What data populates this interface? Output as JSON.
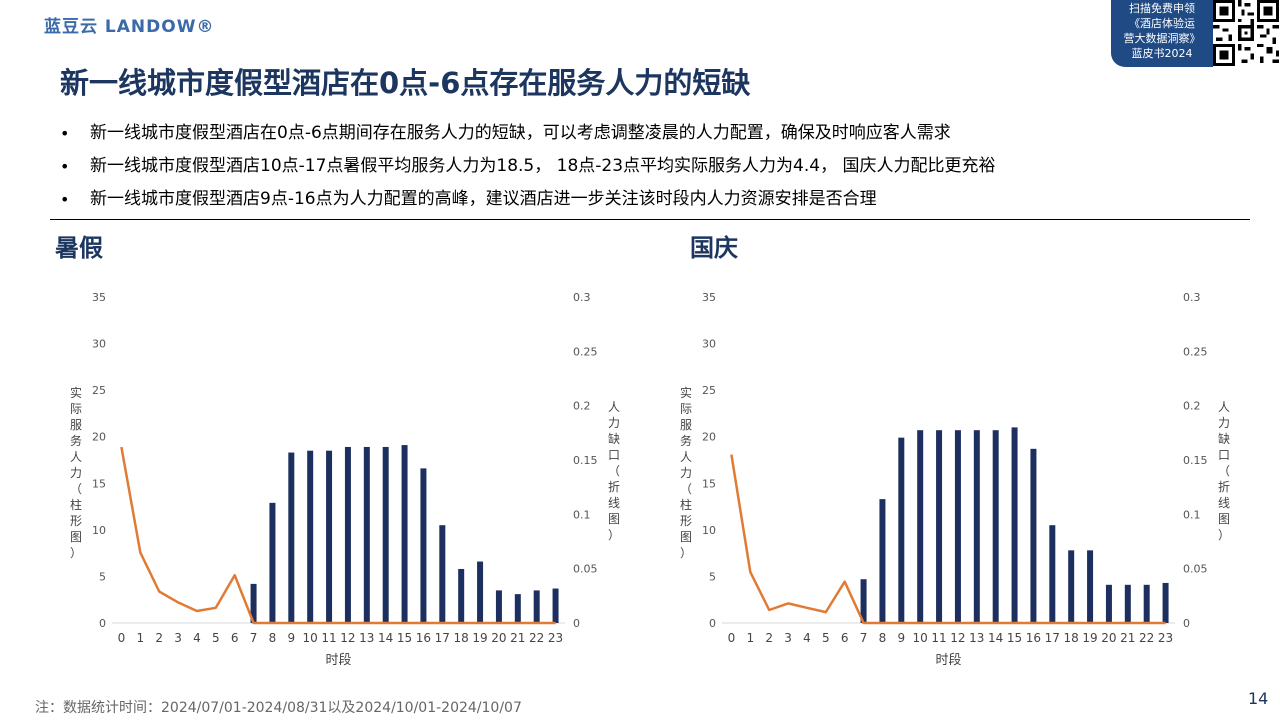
{
  "header": {
    "logo": "蓝豆云 LANDOW®",
    "promo_lines": [
      "扫描免费申领",
      "《酒店体验运",
      "营大数据洞察》",
      "蓝皮书2024"
    ]
  },
  "title": "新一线城市度假型酒店在0点-6点存在服务人力的短缺",
  "bullets": [
    "新一线城市度假型酒店在0点-6点期间存在服务人力的短缺，可以考虑调整凌晨的人力配置，确保及时响应客人需求",
    "新一线城市度假型酒店10点-17点暑假平均服务人力为18.5， 18点-23点平均实际服务人力为4.4， 国庆人力配比更充裕",
    "新一线城市度假型酒店9点-16点为人力配置的高峰，建议酒店进一步关注该时段内人力资源安排是否合理"
  ],
  "footer": "注：数据统计时间：2024/07/01-2024/08/31以及2024/10/01-2024/10/07",
  "page_number": "14",
  "colors": {
    "bar": "#1c2f5e",
    "line": "#e07b35",
    "title": "#1c3660"
  },
  "chart_data": [
    {
      "type": "bar+line",
      "title": "暑假",
      "xlabel": "时段",
      "ylabel_left": "实际服务人力（柱形图）",
      "ylabel_right": "人力缺口（折线图）",
      "categories": [
        "0",
        "1",
        "2",
        "3",
        "4",
        "5",
        "6",
        "7",
        "8",
        "9",
        "10",
        "11",
        "12",
        "13",
        "14",
        "15",
        "16",
        "17",
        "18",
        "19",
        "20",
        "21",
        "22",
        "23"
      ],
      "y_left_ticks": [
        "0",
        "5",
        "10",
        "15",
        "20",
        "25",
        "30",
        "35"
      ],
      "y_right_ticks": [
        "0",
        "0.05",
        "0.1",
        "0.15",
        "0.2",
        "0.25",
        "0.3"
      ],
      "ylim_left": [
        0,
        35
      ],
      "ylim_right": [
        0,
        0.3
      ],
      "series": [
        {
          "axis": "left",
          "kind": "bar",
          "values": [
            0,
            0,
            0,
            0,
            0,
            0,
            0,
            4.2,
            12.9,
            18.3,
            18.5,
            18.5,
            18.9,
            18.9,
            18.9,
            19.1,
            16.6,
            10.5,
            5.8,
            6.6,
            3.5,
            3.1,
            3.5,
            3.7
          ]
        },
        {
          "axis": "right",
          "kind": "line",
          "values": [
            0.162,
            0.065,
            0.029,
            0.019,
            0.011,
            0.014,
            0.044,
            0,
            0,
            0,
            0,
            0,
            0,
            0,
            0,
            0,
            0,
            0,
            0,
            0,
            0,
            0,
            0,
            0
          ]
        }
      ]
    },
    {
      "type": "bar+line",
      "title": "国庆",
      "xlabel": "时段",
      "ylabel_left": "实际服务人力（柱形图）",
      "ylabel_right": "人力缺口（折线图）",
      "categories": [
        "0",
        "1",
        "2",
        "3",
        "4",
        "5",
        "6",
        "7",
        "8",
        "9",
        "10",
        "11",
        "12",
        "13",
        "14",
        "15",
        "16",
        "17",
        "18",
        "19",
        "20",
        "21",
        "22",
        "23"
      ],
      "y_left_ticks": [
        "0",
        "5",
        "10",
        "15",
        "20",
        "25",
        "30",
        "35"
      ],
      "y_right_ticks": [
        "0",
        "0.05",
        "0.1",
        "0.15",
        "0.2",
        "0.25",
        "0.3"
      ],
      "ylim_left": [
        0,
        35
      ],
      "ylim_right": [
        0,
        0.3
      ],
      "series": [
        {
          "axis": "left",
          "kind": "bar",
          "values": [
            0,
            0,
            0,
            0,
            0,
            0,
            0,
            4.7,
            13.3,
            19.9,
            20.7,
            20.7,
            20.7,
            20.7,
            20.7,
            21.0,
            18.7,
            10.5,
            7.8,
            7.8,
            4.1,
            4.1,
            4.1,
            4.3
          ]
        },
        {
          "axis": "right",
          "kind": "line",
          "values": [
            0.155,
            0.047,
            0.012,
            0.018,
            0.014,
            0.01,
            0.038,
            0,
            0,
            0,
            0,
            0,
            0,
            0,
            0,
            0,
            0,
            0,
            0,
            0,
            0,
            0,
            0,
            0
          ]
        }
      ]
    }
  ]
}
